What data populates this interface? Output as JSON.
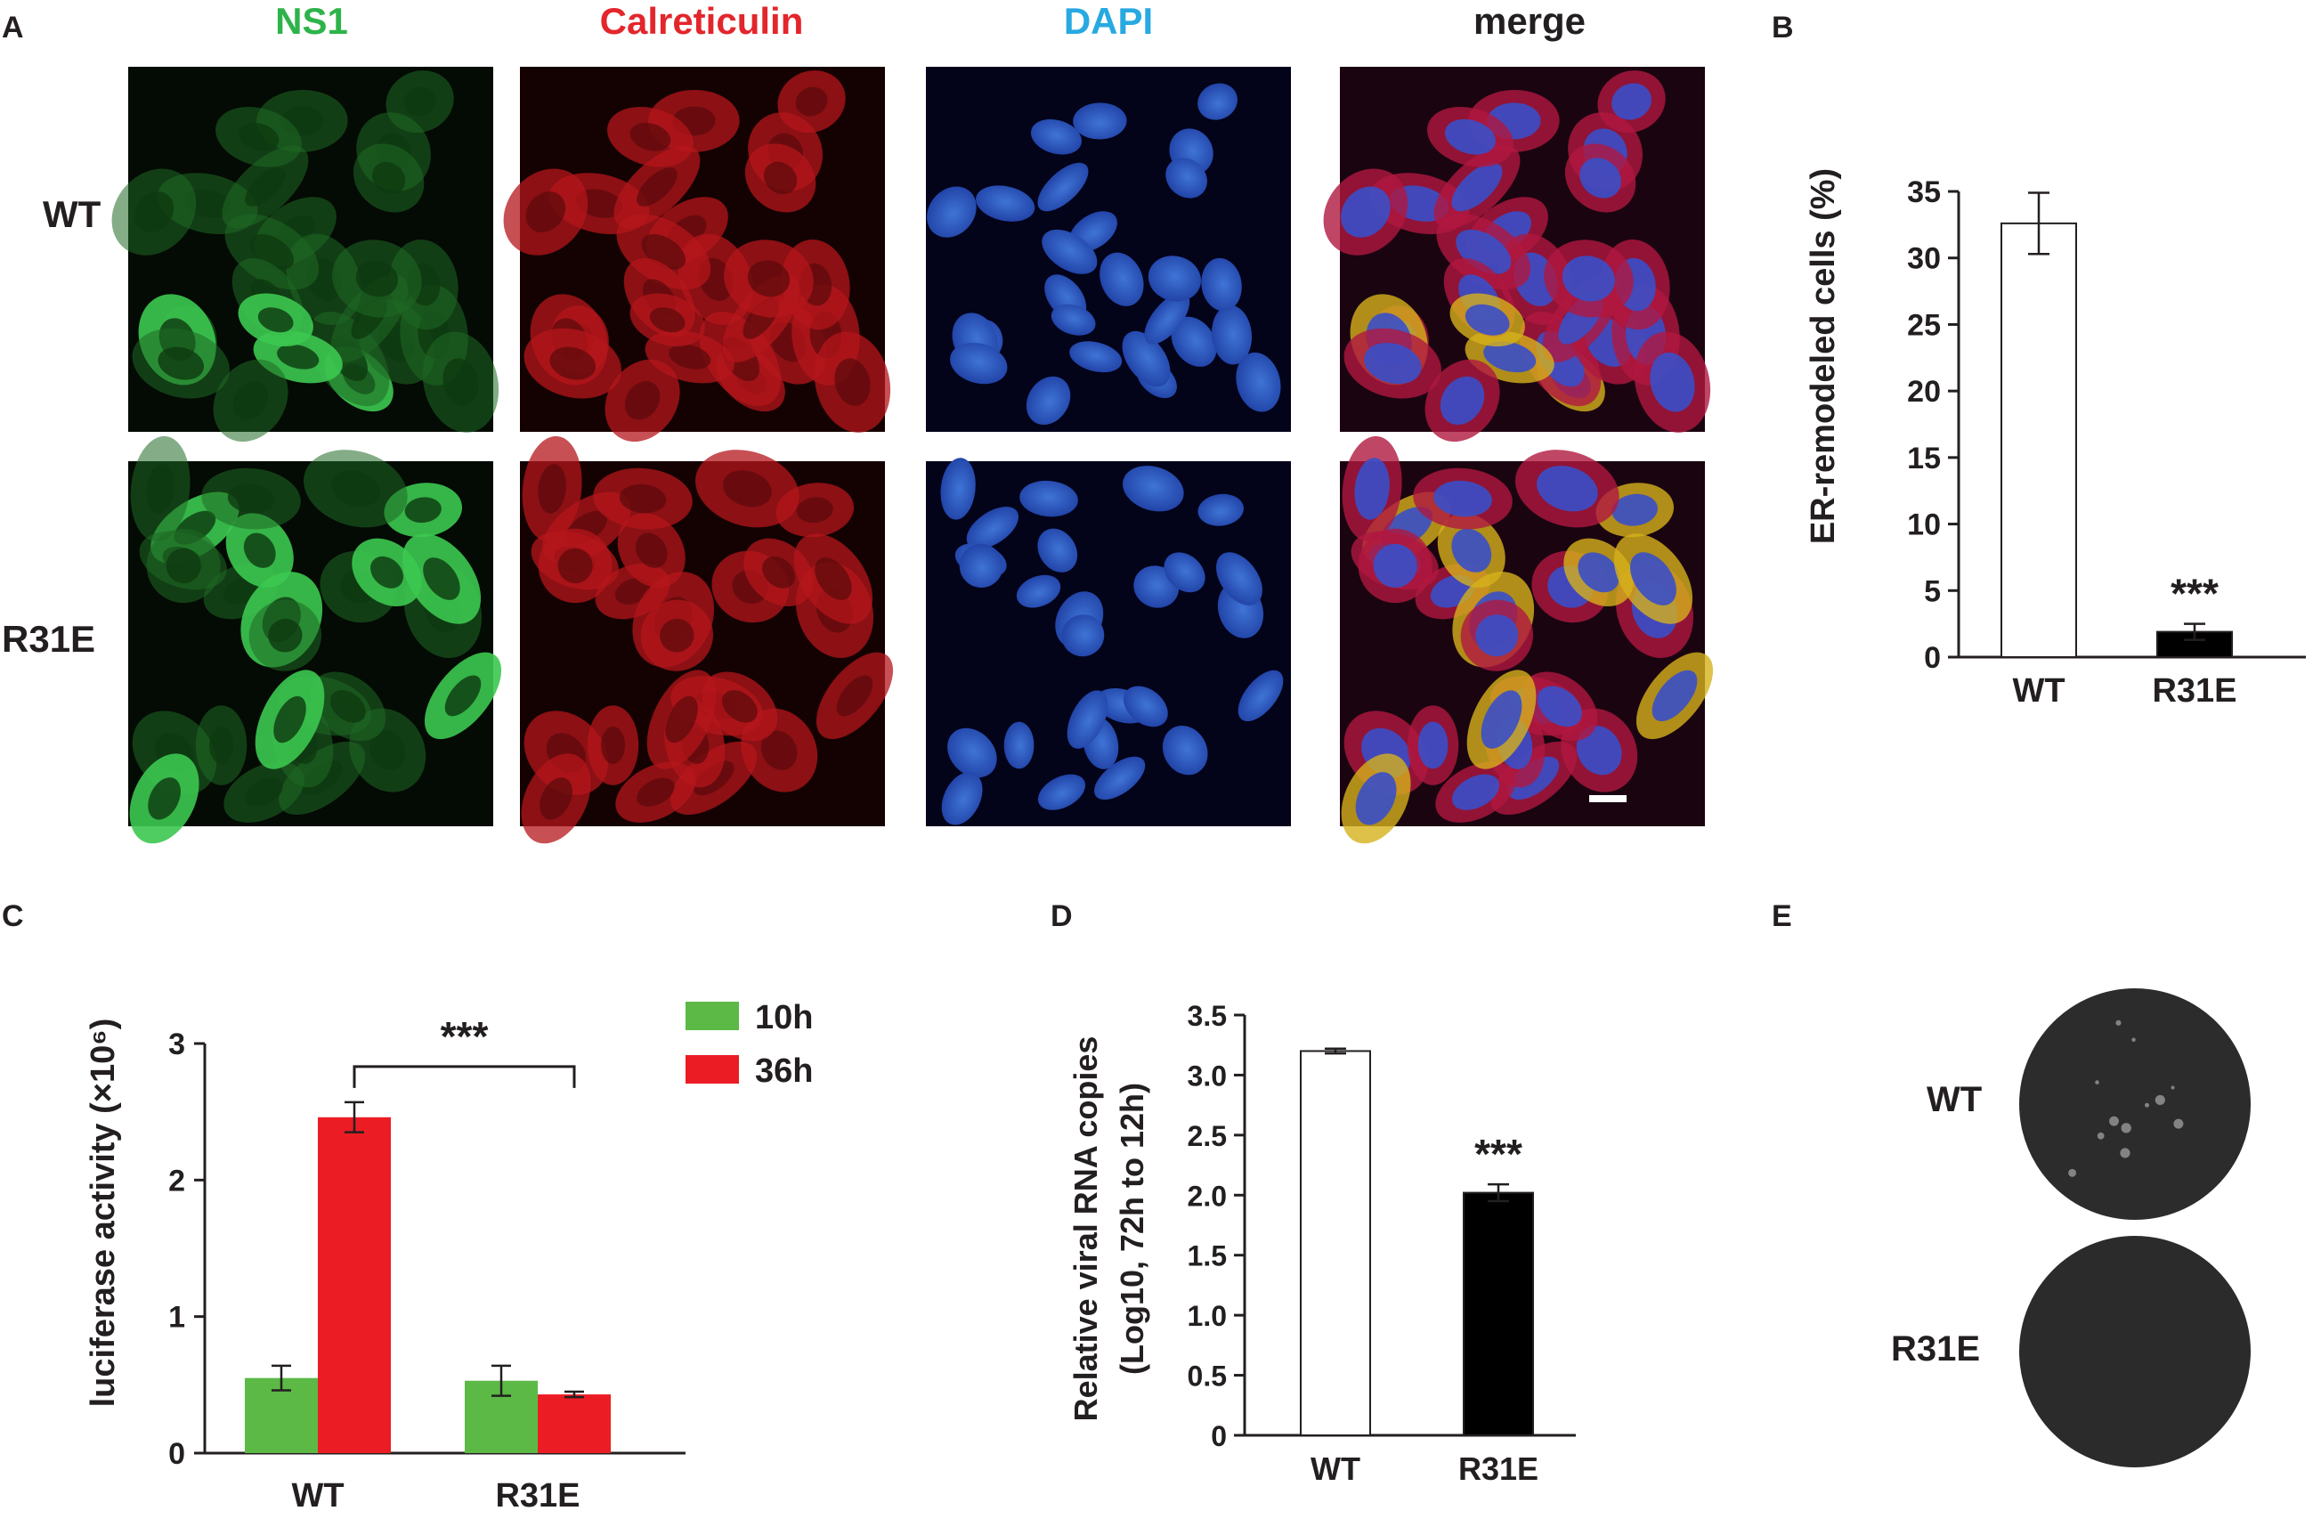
{
  "panel_letters": [
    "A",
    "B",
    "C",
    "D",
    "E"
  ],
  "panel_a": {
    "channels": [
      {
        "label": "NS1",
        "color": "#2db34a"
      },
      {
        "label": "Calreticulin",
        "color": "#e3262c"
      },
      {
        "label": "DAPI",
        "color": "#27a9e1"
      },
      {
        "label": "merge",
        "color": "#231f20"
      }
    ],
    "rows": [
      "WT",
      "R31E"
    ]
  },
  "panel_e": {
    "rows": [
      "WT",
      "R31E"
    ]
  },
  "chart_data": [
    {
      "panel": "B",
      "type": "bar",
      "categories": [
        "WT",
        "R31E"
      ],
      "values": [
        32.6,
        1.9
      ],
      "errors": [
        2.3,
        0.6
      ],
      "bar_fills": [
        "#ffffff",
        "#000000"
      ],
      "title": "",
      "xlabel": "",
      "ylabel": "ER-remodeled cells (%)",
      "ylim": [
        0,
        35
      ],
      "yticks": [
        "0",
        "5",
        "10",
        "15",
        "20",
        "25",
        "30",
        "35"
      ],
      "annotations": [
        {
          "text": "***",
          "category": "R31E"
        }
      ]
    },
    {
      "panel": "C",
      "type": "bar",
      "categories": [
        "WT",
        "R31E"
      ],
      "series": [
        {
          "name": "10h",
          "values": [
            0.55,
            0.53
          ],
          "errors": [
            0.09,
            0.11
          ],
          "color": "#5cb946"
        },
        {
          "name": "36h",
          "values": [
            2.46,
            0.43
          ],
          "errors": [
            0.11,
            0.02
          ],
          "color": "#ec1c24"
        }
      ],
      "title": "",
      "xlabel": "",
      "ylabel": "luciferase activity (×10⁶)",
      "ylim": [
        0,
        3
      ],
      "yticks": [
        "0",
        "1",
        "2",
        "3"
      ],
      "legend": "top-right",
      "annotations": [
        {
          "text": "***",
          "between": [
            "WT 36h",
            "R31E 36h"
          ]
        }
      ]
    },
    {
      "panel": "D",
      "type": "bar",
      "categories": [
        "WT",
        "R31E"
      ],
      "values": [
        3.2,
        2.02
      ],
      "errors": [
        0.02,
        0.07
      ],
      "bar_fills": [
        "#ffffff",
        "#000000"
      ],
      "title": "",
      "xlabel": "",
      "ylabel": "Relative viral RNA copies",
      "ylabel2": "(Log10, 72h to 12h)",
      "ylim": [
        0,
        3.5
      ],
      "yticks": [
        "0",
        "0.5",
        "1.0",
        "1.5",
        "2.0",
        "2.5",
        "3.0",
        "3.5"
      ],
      "annotations": [
        {
          "text": "***",
          "category": "R31E"
        }
      ]
    }
  ]
}
